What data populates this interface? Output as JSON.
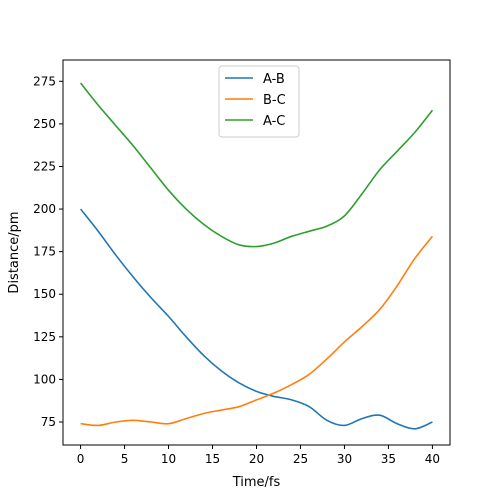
{
  "chart_data": {
    "type": "line",
    "title": "",
    "xlabel": "Time/fs",
    "ylabel": "Distance/pm",
    "xlim": [
      -2,
      42
    ],
    "ylim": [
      61.5,
      287.5
    ],
    "xticks": [
      0,
      5,
      10,
      15,
      20,
      25,
      30,
      35,
      40
    ],
    "yticks": [
      75,
      100,
      125,
      150,
      175,
      200,
      225,
      250,
      275
    ],
    "grid": false,
    "legend_position": "top-center",
    "series": [
      {
        "name": "A-B",
        "color": "#1f77b4",
        "x": [
          0,
          2,
          4,
          6,
          8,
          10,
          12,
          14,
          16,
          18,
          20,
          22,
          24,
          26,
          28,
          30,
          32,
          34,
          36,
          38,
          40
        ],
        "y": [
          200,
          187,
          173,
          160,
          148,
          137,
          125,
          114,
          105,
          98,
          93,
          90,
          88,
          84,
          76,
          73,
          77,
          79,
          74,
          71,
          75
        ]
      },
      {
        "name": "B-C",
        "color": "#ff7f0e",
        "x": [
          0,
          2,
          4,
          6,
          8,
          10,
          12,
          14,
          16,
          18,
          20,
          22,
          24,
          26,
          28,
          30,
          32,
          34,
          36,
          38,
          40
        ],
        "y": [
          74,
          73,
          75,
          76,
          75,
          74,
          77,
          80,
          82,
          84,
          88,
          92,
          97,
          103,
          112,
          122,
          131,
          141,
          155,
          171,
          184
        ]
      },
      {
        "name": "A-C",
        "color": "#2ca02c",
        "x": [
          0,
          2,
          4,
          6,
          8,
          10,
          12,
          14,
          16,
          18,
          20,
          22,
          24,
          26,
          28,
          30,
          32,
          34,
          36,
          38,
          40
        ],
        "y": [
          274,
          261,
          249,
          237,
          224,
          211,
          200,
          191,
          184,
          179,
          178,
          180,
          184,
          187,
          190,
          196,
          209,
          223,
          234,
          245,
          258
        ]
      }
    ]
  }
}
